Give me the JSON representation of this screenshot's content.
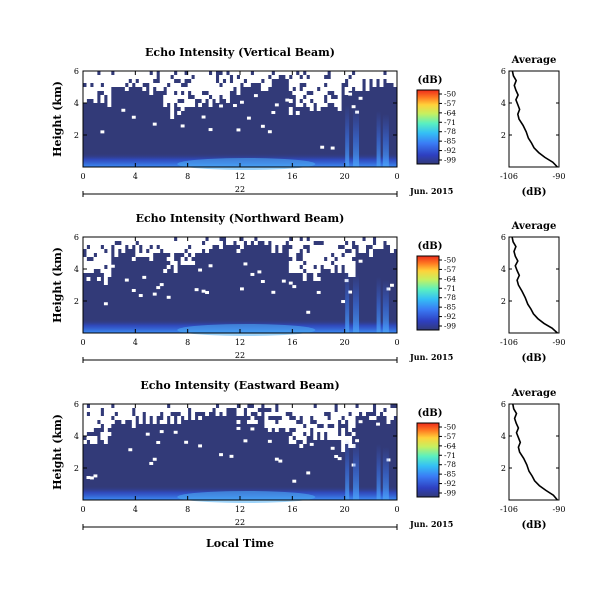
{
  "chart_data": [
    {
      "type": "heatmap",
      "title": "Echo Intensity (Vertical Beam)",
      "ylabel": "Height (km)",
      "x_ticks": [
        "0",
        "4",
        "8",
        "12",
        "16",
        "20",
        "0"
      ],
      "day_label": "22",
      "date_label": "Jun. 2015",
      "y_ticks": [
        "6",
        "4",
        "2"
      ],
      "ylim": [
        0,
        6
      ],
      "colorbar": {
        "unit": "(dB)",
        "ticks": [
          "-50",
          "-57",
          "-64",
          "-71",
          "-78",
          "-85",
          "-92",
          "-99"
        ]
      },
      "average": {
        "title": "Average",
        "xlabel": "(dB)",
        "x_ticks": [
          "-106",
          "-90"
        ],
        "y_ticks": [
          "6",
          "4",
          "2"
        ],
        "xlim": [
          -106,
          -90
        ],
        "profile": [
          [
            -90.5,
            0.0
          ],
          [
            -92,
            0.3
          ],
          [
            -94.5,
            0.6
          ],
          [
            -96.5,
            0.9
          ],
          [
            -98,
            1.2
          ],
          [
            -98.8,
            1.5
          ],
          [
            -99.8,
            1.8
          ],
          [
            -100.5,
            2.2
          ],
          [
            -101.5,
            2.6
          ],
          [
            -102.8,
            3.0
          ],
          [
            -103.2,
            3.3
          ],
          [
            -102.6,
            3.6
          ],
          [
            -103.2,
            3.9
          ],
          [
            -103.8,
            4.2
          ],
          [
            -103.1,
            4.5
          ],
          [
            -103.8,
            4.8
          ],
          [
            -104.3,
            5.1
          ],
          [
            -103.7,
            5.4
          ],
          [
            -104.6,
            5.7
          ],
          [
            -104.9,
            6.0
          ]
        ]
      }
    },
    {
      "type": "heatmap",
      "title": "Echo Intensity (Northward Beam)",
      "ylabel": "Height (km)",
      "x_ticks": [
        "0",
        "4",
        "8",
        "12",
        "16",
        "20",
        "0"
      ],
      "day_label": "22",
      "date_label": "Jun. 2015",
      "y_ticks": [
        "6",
        "4",
        "2"
      ],
      "ylim": [
        0,
        6
      ],
      "colorbar": {
        "unit": "(dB)",
        "ticks": [
          "-50",
          "-57",
          "-64",
          "-71",
          "-78",
          "-85",
          "-92",
          "-99"
        ]
      },
      "average": {
        "title": "Average",
        "xlabel": "(dB)",
        "x_ticks": [
          "-106",
          "-90"
        ],
        "y_ticks": [
          "6",
          "4",
          "2"
        ],
        "xlim": [
          -106,
          -90
        ],
        "profile": [
          [
            -90.5,
            0.0
          ],
          [
            -92.2,
            0.3
          ],
          [
            -94.8,
            0.6
          ],
          [
            -96.8,
            0.9
          ],
          [
            -98.2,
            1.2
          ],
          [
            -99,
            1.5
          ],
          [
            -100,
            1.8
          ],
          [
            -100.8,
            2.2
          ],
          [
            -101.8,
            2.6
          ],
          [
            -103,
            3.0
          ],
          [
            -103.4,
            3.3
          ],
          [
            -102.7,
            3.6
          ],
          [
            -103.4,
            3.9
          ],
          [
            -104,
            4.2
          ],
          [
            -103.2,
            4.5
          ],
          [
            -104,
            4.8
          ],
          [
            -104.4,
            5.1
          ],
          [
            -103.8,
            5.4
          ],
          [
            -104.7,
            5.7
          ],
          [
            -105,
            6.0
          ]
        ]
      }
    },
    {
      "type": "heatmap",
      "title": "Echo Intensity (Eastward Beam)",
      "ylabel": "Height (km)",
      "x_ticks": [
        "0",
        "4",
        "8",
        "12",
        "16",
        "20",
        "0"
      ],
      "day_label": "22",
      "date_label": "Jun. 2015",
      "xlabel": "Local Time",
      "y_ticks": [
        "6",
        "4",
        "2"
      ],
      "ylim": [
        0,
        6
      ],
      "colorbar": {
        "unit": "(dB)",
        "ticks": [
          "-50",
          "-57",
          "-64",
          "-71",
          "-78",
          "-85",
          "-92",
          "-99"
        ]
      },
      "average": {
        "title": "Average",
        "xlabel": "(dB)",
        "x_ticks": [
          "-106",
          "-90"
        ],
        "y_ticks": [
          "6",
          "4",
          "2"
        ],
        "xlim": [
          -106,
          -90
        ],
        "profile": [
          [
            -90.5,
            0.0
          ],
          [
            -91.8,
            0.3
          ],
          [
            -94.2,
            0.6
          ],
          [
            -96.3,
            0.9
          ],
          [
            -97.8,
            1.2
          ],
          [
            -98.6,
            1.5
          ],
          [
            -99.6,
            1.8
          ],
          [
            -100.3,
            2.2
          ],
          [
            -101.3,
            2.6
          ],
          [
            -102.6,
            3.0
          ],
          [
            -103,
            3.3
          ],
          [
            -102.4,
            3.6
          ],
          [
            -103,
            3.9
          ],
          [
            -103.6,
            4.2
          ],
          [
            -103,
            4.5
          ],
          [
            -103.7,
            4.8
          ],
          [
            -104.2,
            5.1
          ],
          [
            -103.6,
            5.4
          ],
          [
            -104.5,
            5.7
          ],
          [
            -104.8,
            6.0
          ]
        ]
      }
    }
  ]
}
